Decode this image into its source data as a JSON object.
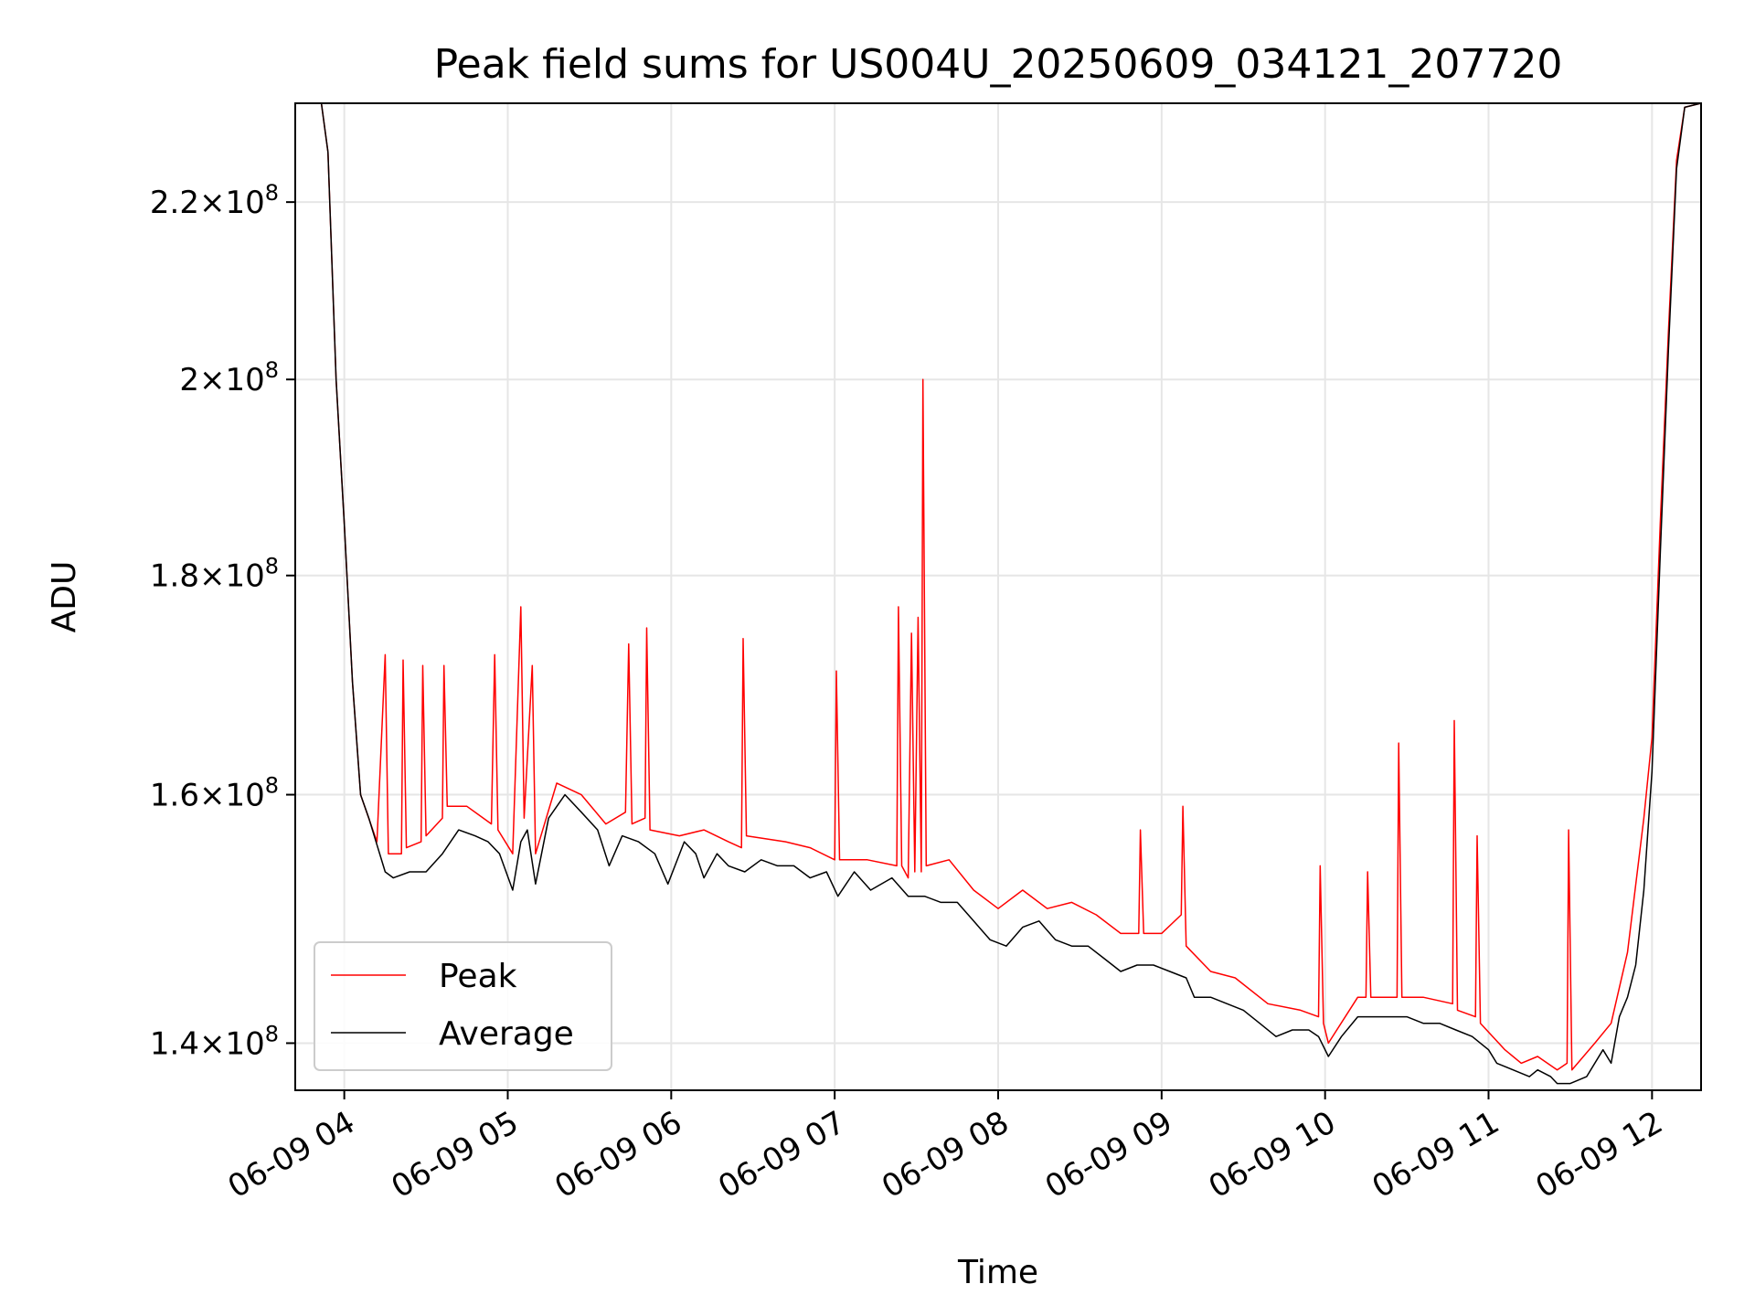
{
  "chart_data": {
    "type": "line",
    "title": "Peak field sums for US004U_20250609_034121_207720",
    "xlabel": "Time",
    "ylabel": "ADU",
    "x_unit": "hours of 2025-06-09 (UTC)",
    "xlim": [
      3.7,
      12.3
    ],
    "ylim": [
      136500000,
      232000000
    ],
    "y_scale": "log",
    "grid": true,
    "legend_position": "lower-left",
    "x_ticks": [
      {
        "value": 4,
        "label": "06-09 04"
      },
      {
        "value": 5,
        "label": "06-09 05"
      },
      {
        "value": 6,
        "label": "06-09 06"
      },
      {
        "value": 7,
        "label": "06-09 07"
      },
      {
        "value": 8,
        "label": "06-09 08"
      },
      {
        "value": 9,
        "label": "06-09 09"
      },
      {
        "value": 10,
        "label": "06-09 10"
      },
      {
        "value": 11,
        "label": "06-09 11"
      },
      {
        "value": 12,
        "label": "06-09 12"
      }
    ],
    "y_ticks": [
      {
        "value": 140000000,
        "mantissa": "1.4",
        "exponent": "8"
      },
      {
        "value": 160000000,
        "mantissa": "1.6",
        "exponent": "8"
      },
      {
        "value": 180000000,
        "mantissa": "1.8",
        "exponent": "8"
      },
      {
        "value": 200000000,
        "mantissa": "2",
        "exponent": "8"
      },
      {
        "value": 220000000,
        "mantissa": "2.2",
        "exponent": "8"
      }
    ],
    "times_sep": "×10",
    "series": [
      {
        "name": "Peak",
        "color": "#ff0000",
        "values": [
          [
            3.7,
            232000000
          ],
          [
            3.86,
            232000000
          ],
          [
            3.9,
            226000000
          ],
          [
            3.95,
            200000000
          ],
          [
            4.0,
            185000000
          ],
          [
            4.05,
            170000000
          ],
          [
            4.1,
            160000000
          ],
          [
            4.2,
            156000000
          ],
          [
            4.25,
            172500000
          ],
          [
            4.27,
            155000000
          ],
          [
            4.35,
            155000000
          ],
          [
            4.36,
            172000000
          ],
          [
            4.38,
            155500000
          ],
          [
            4.47,
            156000000
          ],
          [
            4.48,
            171500000
          ],
          [
            4.5,
            156500000
          ],
          [
            4.6,
            158000000
          ],
          [
            4.61,
            171500000
          ],
          [
            4.63,
            159000000
          ],
          [
            4.75,
            159000000
          ],
          [
            4.9,
            157500000
          ],
          [
            4.92,
            172500000
          ],
          [
            4.94,
            157000000
          ],
          [
            5.03,
            155000000
          ],
          [
            5.08,
            177000000
          ],
          [
            5.1,
            158000000
          ],
          [
            5.15,
            171500000
          ],
          [
            5.17,
            155000000
          ],
          [
            5.3,
            161000000
          ],
          [
            5.45,
            160000000
          ],
          [
            5.6,
            157500000
          ],
          [
            5.72,
            158500000
          ],
          [
            5.74,
            173500000
          ],
          [
            5.76,
            157500000
          ],
          [
            5.84,
            158000000
          ],
          [
            5.85,
            175000000
          ],
          [
            5.87,
            157000000
          ],
          [
            6.05,
            156500000
          ],
          [
            6.2,
            157000000
          ],
          [
            6.35,
            156000000
          ],
          [
            6.43,
            155500000
          ],
          [
            6.44,
            174000000
          ],
          [
            6.46,
            156500000
          ],
          [
            6.7,
            156000000
          ],
          [
            6.85,
            155500000
          ],
          [
            7.0,
            154500000
          ],
          [
            7.01,
            171000000
          ],
          [
            7.03,
            154500000
          ],
          [
            7.2,
            154500000
          ],
          [
            7.38,
            154000000
          ],
          [
            7.39,
            177000000
          ],
          [
            7.41,
            154000000
          ],
          [
            7.45,
            153000000
          ],
          [
            7.47,
            174500000
          ],
          [
            7.49,
            153500000
          ],
          [
            7.51,
            176000000
          ],
          [
            7.53,
            153500000
          ],
          [
            7.54,
            200000000
          ],
          [
            7.56,
            154000000
          ],
          [
            7.7,
            154500000
          ],
          [
            7.85,
            152000000
          ],
          [
            8.0,
            150500000
          ],
          [
            8.15,
            152000000
          ],
          [
            8.3,
            150500000
          ],
          [
            8.45,
            151000000
          ],
          [
            8.6,
            150000000
          ],
          [
            8.75,
            148500000
          ],
          [
            8.86,
            148500000
          ],
          [
            8.87,
            157000000
          ],
          [
            8.89,
            148500000
          ],
          [
            9.0,
            148500000
          ],
          [
            9.12,
            150000000
          ],
          [
            9.13,
            159000000
          ],
          [
            9.15,
            147500000
          ],
          [
            9.3,
            145500000
          ],
          [
            9.45,
            145000000
          ],
          [
            9.65,
            143000000
          ],
          [
            9.85,
            142500000
          ],
          [
            9.96,
            142000000
          ],
          [
            9.97,
            154000000
          ],
          [
            9.99,
            141500000
          ],
          [
            10.02,
            140000000
          ],
          [
            10.2,
            143500000
          ],
          [
            10.25,
            143500000
          ],
          [
            10.26,
            153500000
          ],
          [
            10.28,
            143500000
          ],
          [
            10.44,
            143500000
          ],
          [
            10.45,
            164500000
          ],
          [
            10.47,
            143500000
          ],
          [
            10.6,
            143500000
          ],
          [
            10.78,
            143000000
          ],
          [
            10.79,
            166500000
          ],
          [
            10.81,
            142500000
          ],
          [
            10.92,
            142000000
          ],
          [
            10.93,
            156500000
          ],
          [
            10.95,
            141500000
          ],
          [
            11.1,
            139500000
          ],
          [
            11.2,
            138500000
          ],
          [
            11.3,
            139000000
          ],
          [
            11.42,
            138000000
          ],
          [
            11.48,
            138500000
          ],
          [
            11.49,
            157000000
          ],
          [
            11.51,
            138000000
          ],
          [
            11.65,
            140000000
          ],
          [
            11.75,
            141500000
          ],
          [
            11.85,
            147000000
          ],
          [
            11.95,
            158000000
          ],
          [
            12.0,
            165000000
          ],
          [
            12.05,
            185000000
          ],
          [
            12.1,
            205000000
          ],
          [
            12.15,
            225000000
          ],
          [
            12.2,
            231500000
          ],
          [
            12.3,
            232000000
          ]
        ]
      },
      {
        "name": "Average",
        "color": "#000000",
        "values": [
          [
            3.7,
            232000000
          ],
          [
            3.86,
            232000000
          ],
          [
            3.9,
            226000000
          ],
          [
            3.95,
            200000000
          ],
          [
            4.0,
            185000000
          ],
          [
            4.05,
            170000000
          ],
          [
            4.1,
            160000000
          ],
          [
            4.15,
            158000000
          ],
          [
            4.25,
            153500000
          ],
          [
            4.3,
            153000000
          ],
          [
            4.4,
            153500000
          ],
          [
            4.5,
            153500000
          ],
          [
            4.6,
            155000000
          ],
          [
            4.7,
            157000000
          ],
          [
            4.8,
            156500000
          ],
          [
            4.88,
            156000000
          ],
          [
            4.95,
            155000000
          ],
          [
            5.03,
            152000000
          ],
          [
            5.08,
            156000000
          ],
          [
            5.12,
            157000000
          ],
          [
            5.17,
            152500000
          ],
          [
            5.25,
            158000000
          ],
          [
            5.35,
            160000000
          ],
          [
            5.45,
            158500000
          ],
          [
            5.55,
            157000000
          ],
          [
            5.62,
            154000000
          ],
          [
            5.7,
            156500000
          ],
          [
            5.8,
            156000000
          ],
          [
            5.9,
            155000000
          ],
          [
            5.98,
            152500000
          ],
          [
            6.08,
            156000000
          ],
          [
            6.15,
            155000000
          ],
          [
            6.2,
            153000000
          ],
          [
            6.28,
            155000000
          ],
          [
            6.35,
            154000000
          ],
          [
            6.45,
            153500000
          ],
          [
            6.55,
            154500000
          ],
          [
            6.65,
            154000000
          ],
          [
            6.75,
            154000000
          ],
          [
            6.85,
            153000000
          ],
          [
            6.95,
            153500000
          ],
          [
            7.02,
            151500000
          ],
          [
            7.12,
            153500000
          ],
          [
            7.22,
            152000000
          ],
          [
            7.35,
            153000000
          ],
          [
            7.45,
            151500000
          ],
          [
            7.55,
            151500000
          ],
          [
            7.65,
            151000000
          ],
          [
            7.75,
            151000000
          ],
          [
            7.85,
            149500000
          ],
          [
            7.95,
            148000000
          ],
          [
            8.05,
            147500000
          ],
          [
            8.15,
            149000000
          ],
          [
            8.25,
            149500000
          ],
          [
            8.35,
            148000000
          ],
          [
            8.45,
            147500000
          ],
          [
            8.55,
            147500000
          ],
          [
            8.65,
            146500000
          ],
          [
            8.75,
            145500000
          ],
          [
            8.85,
            146000000
          ],
          [
            8.95,
            146000000
          ],
          [
            9.05,
            145500000
          ],
          [
            9.15,
            145000000
          ],
          [
            9.2,
            143500000
          ],
          [
            9.3,
            143500000
          ],
          [
            9.4,
            143000000
          ],
          [
            9.5,
            142500000
          ],
          [
            9.6,
            141500000
          ],
          [
            9.7,
            140500000
          ],
          [
            9.8,
            141000000
          ],
          [
            9.9,
            141000000
          ],
          [
            9.96,
            140500000
          ],
          [
            10.02,
            139000000
          ],
          [
            10.1,
            140500000
          ],
          [
            10.2,
            142000000
          ],
          [
            10.3,
            142000000
          ],
          [
            10.4,
            142000000
          ],
          [
            10.5,
            142000000
          ],
          [
            10.6,
            141500000
          ],
          [
            10.7,
            141500000
          ],
          [
            10.8,
            141000000
          ],
          [
            10.9,
            140500000
          ],
          [
            11.0,
            139500000
          ],
          [
            11.05,
            138500000
          ],
          [
            11.15,
            138000000
          ],
          [
            11.25,
            137500000
          ],
          [
            11.3,
            138000000
          ],
          [
            11.38,
            137500000
          ],
          [
            11.42,
            137000000
          ],
          [
            11.5,
            137000000
          ],
          [
            11.6,
            137500000
          ],
          [
            11.7,
            139500000
          ],
          [
            11.75,
            138500000
          ],
          [
            11.8,
            142000000
          ],
          [
            11.85,
            143500000
          ],
          [
            11.9,
            146000000
          ],
          [
            11.95,
            152000000
          ],
          [
            12.0,
            162000000
          ],
          [
            12.05,
            182000000
          ],
          [
            12.1,
            203000000
          ],
          [
            12.15,
            224000000
          ],
          [
            12.2,
            231500000
          ],
          [
            12.3,
            232000000
          ]
        ]
      }
    ]
  }
}
